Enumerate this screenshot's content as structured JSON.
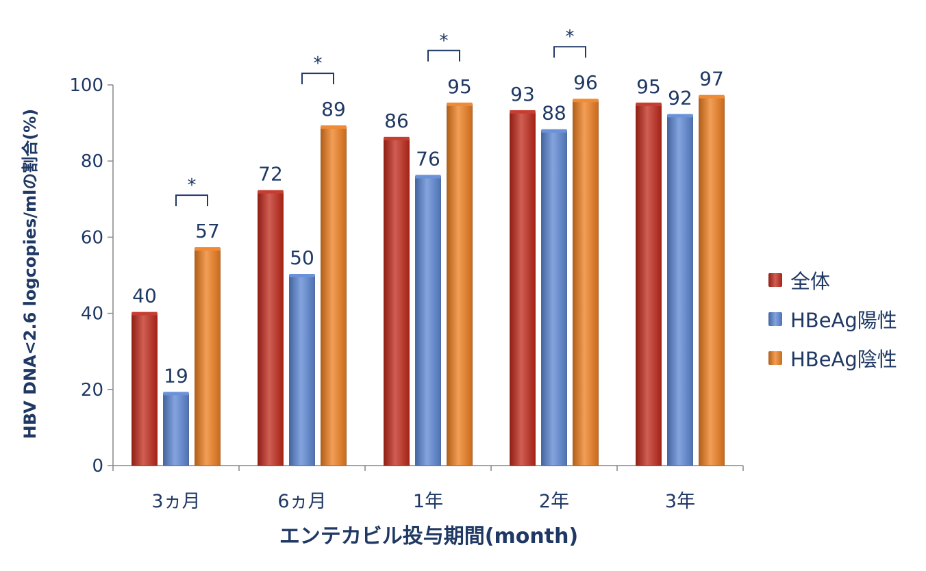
{
  "chart_data": {
    "type": "bar",
    "categories": [
      "3ヵ月",
      "6ヵ月",
      "1年",
      "2年",
      "3年"
    ],
    "series": [
      {
        "name": "全体",
        "values": [
          40,
          72,
          86,
          93,
          95
        ],
        "color": "#c0281a"
      },
      {
        "name": "HBeAg陽性",
        "values": [
          19,
          50,
          76,
          88,
          92
        ],
        "color": "#5b86d4"
      },
      {
        "name": "HBeAg陰性",
        "values": [
          57,
          89,
          95,
          96,
          97
        ],
        "color": "#ee7d1e"
      }
    ],
    "data_labels": [
      [
        "40",
        "72",
        "86",
        "93",
        "95"
      ],
      [
        "19",
        "50",
        "76",
        "88",
        "92"
      ],
      [
        "57",
        "89",
        "95",
        "96",
        "97"
      ]
    ],
    "significance": [
      {
        "category": "3ヵ月",
        "between": [
          "HBeAg陽性",
          "HBeAg陰性"
        ],
        "mark": "*"
      },
      {
        "category": "6ヵ月",
        "between": [
          "HBeAg陽性",
          "HBeAg陰性"
        ],
        "mark": "*"
      },
      {
        "category": "1年",
        "between": [
          "HBeAg陽性",
          "HBeAg陰性"
        ],
        "mark": "*"
      },
      {
        "category": "2年",
        "between": [
          "HBeAg陽性",
          "HBeAg陰性"
        ],
        "mark": "*"
      }
    ],
    "xlabel": "エンテカビル投与期間(month)",
    "ylabel": "HBV DNA<2.6 logcopies/mlの割合(%)",
    "ylim": [
      0,
      100
    ],
    "yticks": [
      0,
      20,
      40,
      60,
      80,
      100
    ],
    "ytick_labels": [
      "0",
      "20",
      "40",
      "60",
      "80",
      "100"
    ],
    "grid": false,
    "legend_position": "right"
  }
}
